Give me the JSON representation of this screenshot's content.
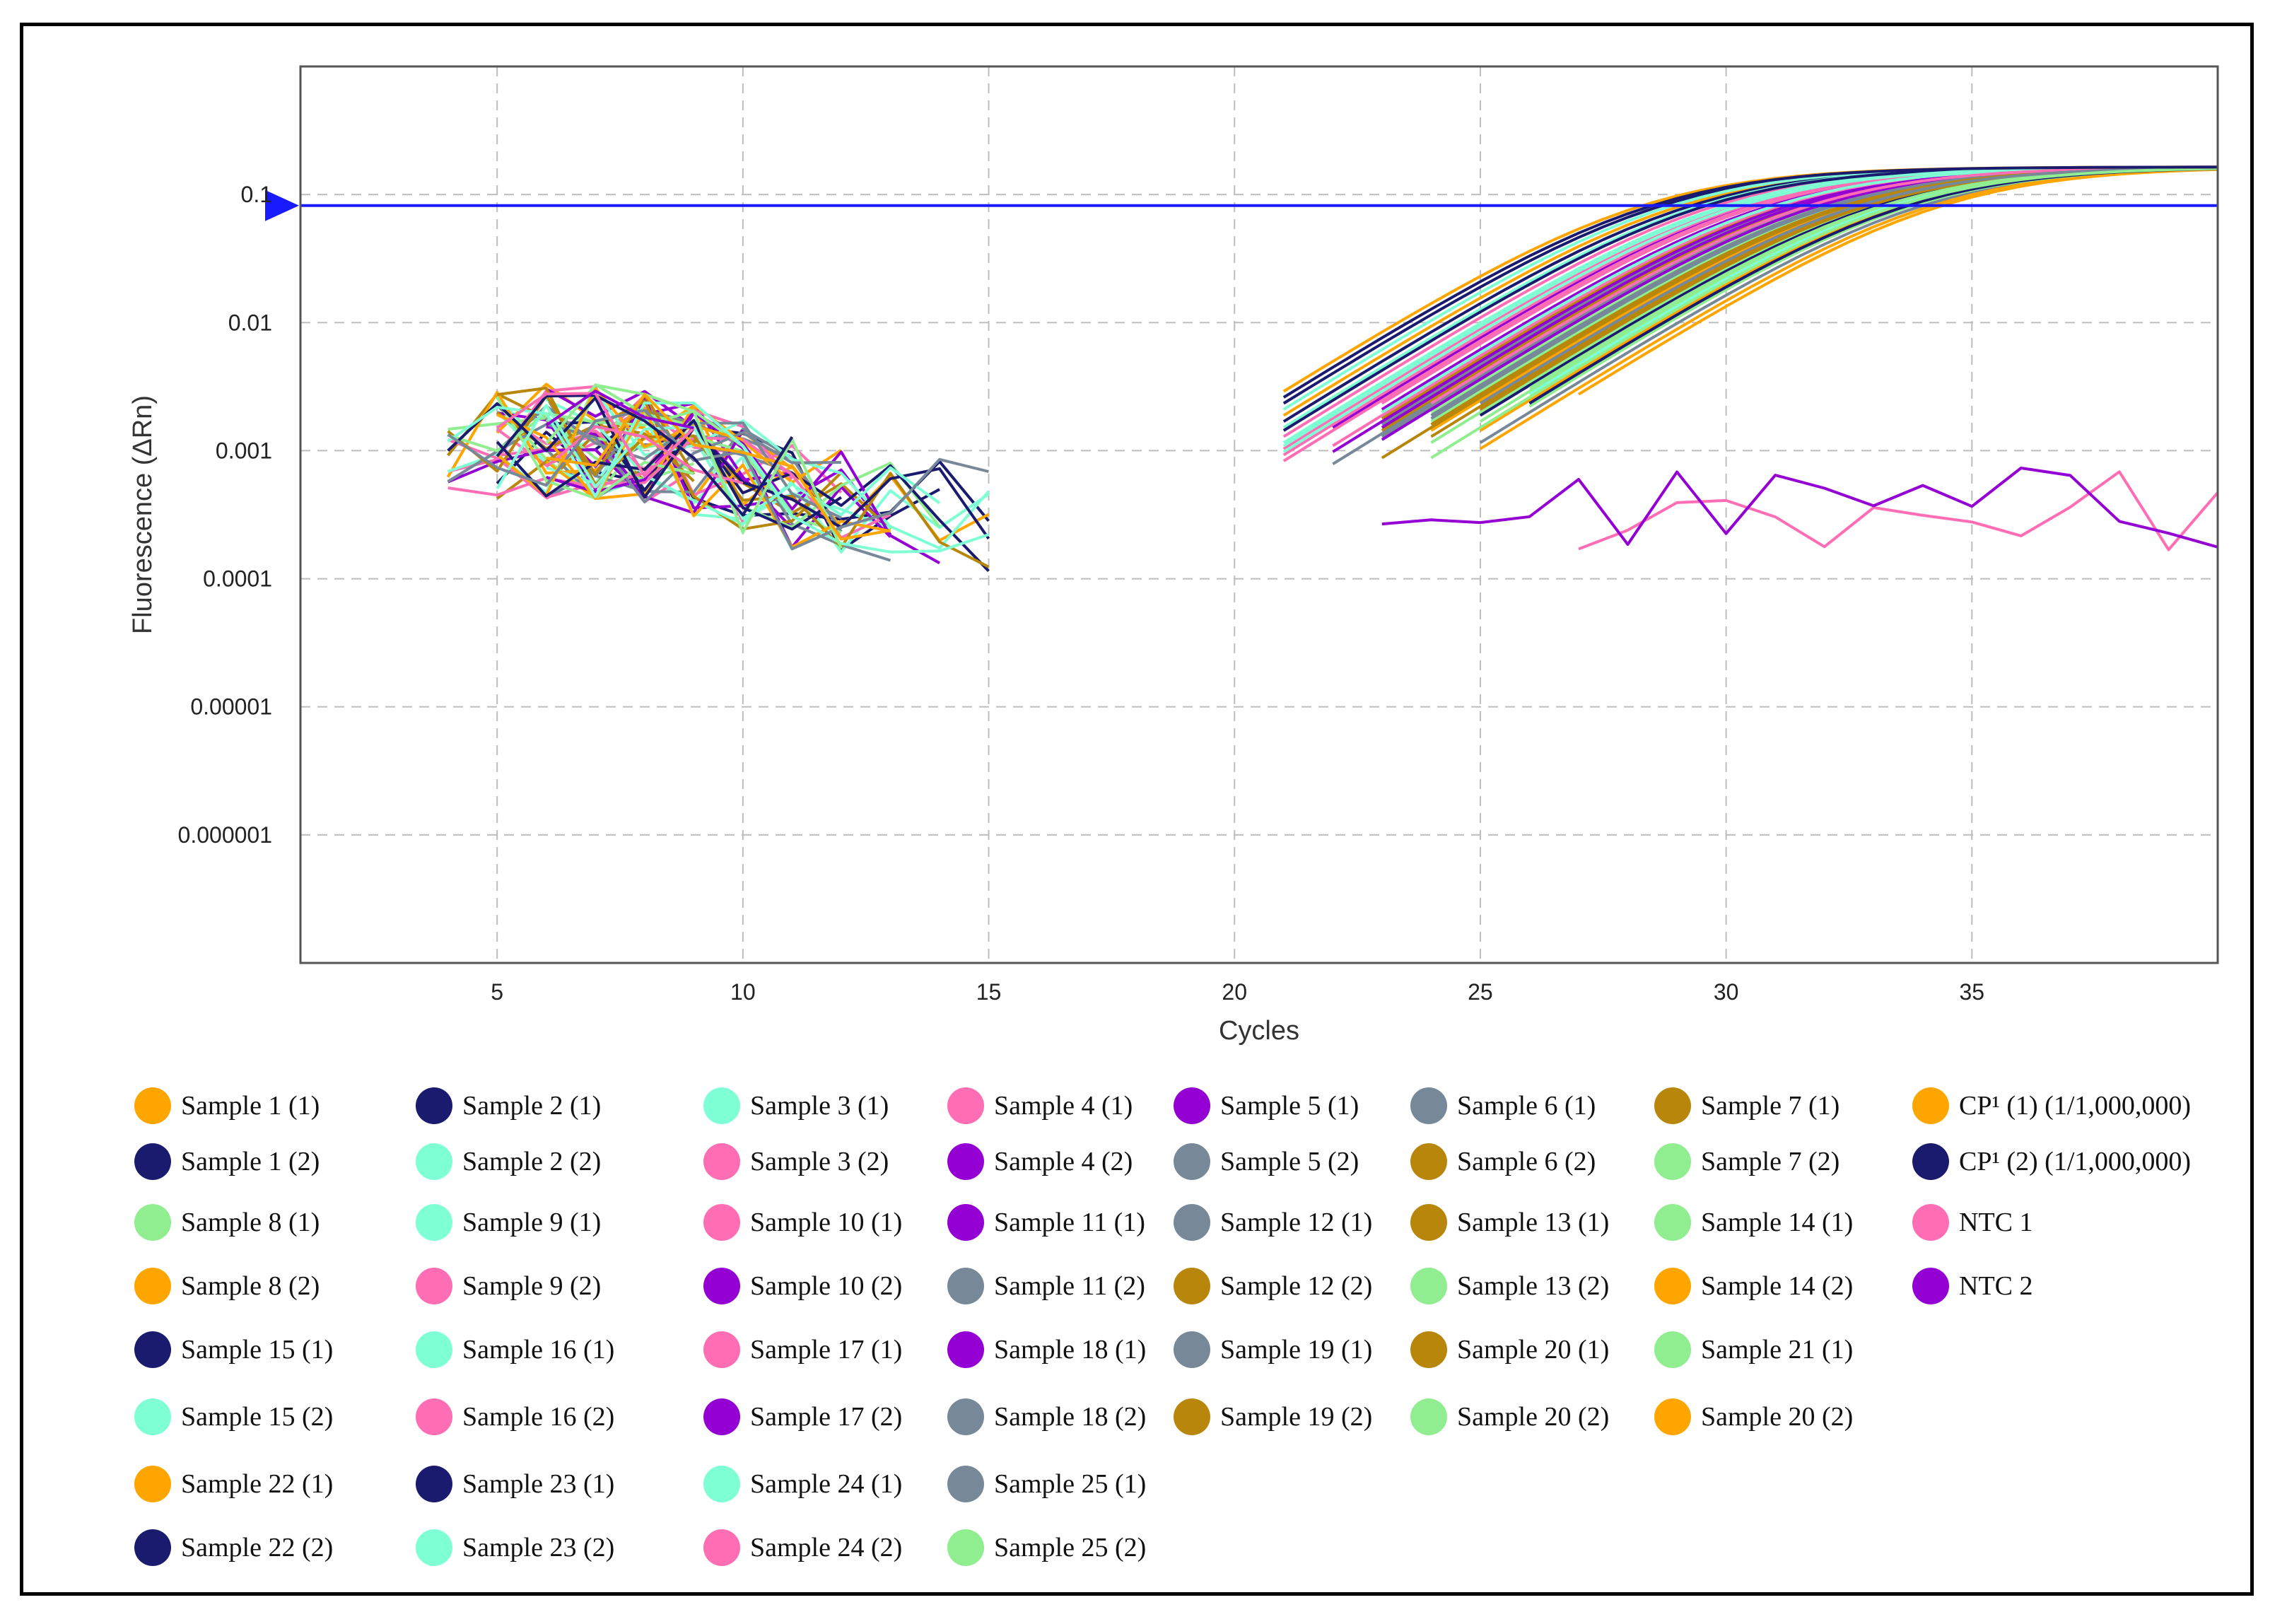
{
  "chart_data": {
    "type": "line",
    "title": "",
    "xlabel": "Cycles",
    "ylabel": "Fluorescence (ΔRn)",
    "y_scale": "log",
    "xlim": [
      1,
      40
    ],
    "ylim": [
      1e-07,
      1
    ],
    "x_ticks": [
      5,
      10,
      15,
      20,
      25,
      30,
      35
    ],
    "x_tick_labels": [
      "5",
      "10",
      "15",
      "20",
      "25",
      "30",
      "35"
    ],
    "y_ticks": [
      0.1,
      0.01,
      0.001,
      0.0001,
      1e-05,
      1e-06
    ],
    "y_tick_labels": [
      "0.1",
      "0.01",
      "0.001",
      "0.0001",
      "0.00001",
      "0.000001"
    ],
    "grid": true,
    "threshold": 0.082,
    "legend_position": "bottom",
    "colors": {
      "orange": "#FFA500",
      "navy": "#1a1a6e",
      "aquamarine": "#7FFFD4",
      "pink": "#FF6EB4",
      "purple": "#9400D3",
      "slate": "#778899",
      "darkgoldenrod": "#B8860B",
      "lightgreen": "#90EE90",
      "threshold": "#1a1aff",
      "grid": "#bdbdbd"
    },
    "series": [
      {
        "name": "Sample 1 (1)",
        "color": "#FFA500",
        "ct": 29.1
      },
      {
        "name": "Sample 1 (2)",
        "color": "#1a1a6e",
        "ct": 29.3
      },
      {
        "name": "Sample 2 (1)",
        "color": "#1a1a6e",
        "ct": 28.7
      },
      {
        "name": "Sample 2 (2)",
        "color": "#7FFFD4",
        "ct": 28.9
      },
      {
        "name": "Sample 3 (1)",
        "color": "#7FFFD4",
        "ct": 29.5
      },
      {
        "name": "Sample 3 (2)",
        "color": "#FF6EB4",
        "ct": 29.8
      },
      {
        "name": "Sample 4 (1)",
        "color": "#FF6EB4",
        "ct": 30.2
      },
      {
        "name": "Sample 4 (2)",
        "color": "#9400D3",
        "ct": 30.5
      },
      {
        "name": "Sample 5 (1)",
        "color": "#9400D3",
        "ct": 30.9
      },
      {
        "name": "Sample 5 (2)",
        "color": "#778899",
        "ct": 31.4
      },
      {
        "name": "Sample 6 (1)",
        "color": "#778899",
        "ct": 31.8
      },
      {
        "name": "Sample 6 (2)",
        "color": "#B8860B",
        "ct": 31.2
      },
      {
        "name": "Sample 7 (1)",
        "color": "#B8860B",
        "ct": 31.6
      },
      {
        "name": "Sample 7 (2)",
        "color": "#90EE90",
        "ct": 32.0
      },
      {
        "name": "Sample 8 (1)",
        "color": "#90EE90",
        "ct": 32.3
      },
      {
        "name": "Sample 8 (2)",
        "color": "#FFA500",
        "ct": 32.6
      },
      {
        "name": "Sample 9 (1)",
        "color": "#7FFFD4",
        "ct": 30.0
      },
      {
        "name": "Sample 9 (2)",
        "color": "#FF6EB4",
        "ct": 30.4
      },
      {
        "name": "Sample 10 (1)",
        "color": "#FF6EB4",
        "ct": 30.7
      },
      {
        "name": "Sample 10 (2)",
        "color": "#9400D3",
        "ct": 31.0
      },
      {
        "name": "Sample 11 (1)",
        "color": "#9400D3",
        "ct": 31.3
      },
      {
        "name": "Sample 11 (2)",
        "color": "#778899",
        "ct": 31.7
      },
      {
        "name": "Sample 12 (1)",
        "color": "#778899",
        "ct": 32.1
      },
      {
        "name": "Sample 12 (2)",
        "color": "#B8860B",
        "ct": 32.4
      },
      {
        "name": "Sample 13 (1)",
        "color": "#B8860B",
        "ct": 32.8
      },
      {
        "name": "Sample 13 (2)",
        "color": "#90EE90",
        "ct": 33.0
      },
      {
        "name": "Sample 14 (1)",
        "color": "#90EE90",
        "ct": 33.3
      },
      {
        "name": "Sample 14 (2)",
        "color": "#FFA500",
        "ct": 33.6
      },
      {
        "name": "Sample 15 (1)",
        "color": "#1a1a6e",
        "ct": 33.1
      },
      {
        "name": "Sample 15 (2)",
        "color": "#7FFFD4",
        "ct": 33.4
      },
      {
        "name": "Sample 16 (1)",
        "color": "#7FFFD4",
        "ct": 30.1
      },
      {
        "name": "Sample 16 (2)",
        "color": "#FF6EB4",
        "ct": 30.6
      },
      {
        "name": "Sample 17 (1)",
        "color": "#FF6EB4",
        "ct": 31.1
      },
      {
        "name": "Sample 17 (2)",
        "color": "#9400D3",
        "ct": 31.5
      },
      {
        "name": "Sample 18 (1)",
        "color": "#9400D3",
        "ct": 31.9
      },
      {
        "name": "Sample 18 (2)",
        "color": "#778899",
        "ct": 32.2
      },
      {
        "name": "Sample 19 (1)",
        "color": "#778899",
        "ct": 34.0
      },
      {
        "name": "Sample 19 (2)",
        "color": "#B8860B",
        "ct": 32.5
      },
      {
        "name": "Sample 20 (1)",
        "color": "#B8860B",
        "ct": 32.9
      },
      {
        "name": "Sample 20 (2)",
        "color": "#90EE90",
        "ct": 33.2
      },
      {
        "name": "Sample 20 (2)",
        "color": "#FFA500",
        "ct": 34.2
      },
      {
        "name": "Sample 21 (1)",
        "color": "#90EE90",
        "ct": 33.8
      },
      {
        "name": "Sample 22 (1)",
        "color": "#FFA500",
        "ct": 34.4
      },
      {
        "name": "Sample 22 (2)",
        "color": "#1a1a6e",
        "ct": 33.7
      },
      {
        "name": "Sample 23 (1)",
        "color": "#1a1a6e",
        "ct": 29.6
      },
      {
        "name": "Sample 23 (2)",
        "color": "#7FFFD4",
        "ct": 30.3
      },
      {
        "name": "Sample 24 (1)",
        "color": "#7FFFD4",
        "ct": 31.0
      },
      {
        "name": "Sample 24 (2)",
        "color": "#FF6EB4",
        "ct": 31.7
      },
      {
        "name": "Sample 25 (1)",
        "color": "#778899",
        "ct": 32.7
      },
      {
        "name": "Sample 25 (2)",
        "color": "#90EE90",
        "ct": 33.5
      },
      {
        "name": "CP¹ (1) (1/1,000,000)",
        "color": "#FFA500",
        "ct": 28.3
      },
      {
        "name": "CP¹ (2) (1/1,000,000)",
        "color": "#1a1a6e",
        "ct": 28.5
      },
      {
        "name": "NTC 1",
        "color": "#FF6EB4",
        "ct": null
      },
      {
        "name": "NTC 2",
        "color": "#9400D3",
        "ct": null
      }
    ]
  },
  "legend": {
    "columns": [
      [
        {
          "label": "Sample 1 (1)",
          "color": "#FFA500"
        },
        {
          "label": "Sample 1 (2)",
          "color": "#1a1a6e"
        },
        {
          "label": "Sample 8 (1)",
          "color": "#90EE90"
        },
        {
          "label": "Sample 8 (2)",
          "color": "#FFA500"
        },
        {
          "label": "Sample 15 (1)",
          "color": "#1a1a6e"
        },
        {
          "label": "Sample 15 (2)",
          "color": "#7FFFD4"
        },
        {
          "label": "Sample 22 (1)",
          "color": "#FFA500"
        },
        {
          "label": "Sample 22 (2)",
          "color": "#1a1a6e"
        }
      ],
      [
        {
          "label": "Sample 2 (1)",
          "color": "#1a1a6e"
        },
        {
          "label": "Sample 2 (2)",
          "color": "#7FFFD4"
        },
        {
          "label": "Sample 9 (1)",
          "color": "#7FFFD4"
        },
        {
          "label": "Sample 9 (2)",
          "color": "#FF6EB4"
        },
        {
          "label": "Sample 16 (1)",
          "color": "#7FFFD4"
        },
        {
          "label": "Sample 16 (2)",
          "color": "#FF6EB4"
        },
        {
          "label": "Sample 23 (1)",
          "color": "#1a1a6e"
        },
        {
          "label": "Sample 23 (2)",
          "color": "#7FFFD4"
        }
      ],
      [
        {
          "label": "Sample 3 (1)",
          "color": "#7FFFD4"
        },
        {
          "label": "Sample 3 (2)",
          "color": "#FF6EB4"
        },
        {
          "label": "Sample 10 (1)",
          "color": "#FF6EB4"
        },
        {
          "label": "Sample 10 (2)",
          "color": "#9400D3"
        },
        {
          "label": "Sample 17 (1)",
          "color": "#FF6EB4"
        },
        {
          "label": "Sample 17 (2)",
          "color": "#9400D3"
        },
        {
          "label": "Sample 24 (1)",
          "color": "#7FFFD4"
        },
        {
          "label": "Sample 24 (2)",
          "color": "#FF6EB4"
        }
      ],
      [
        {
          "label": "Sample 4 (1)",
          "color": "#FF6EB4"
        },
        {
          "label": "Sample 4 (2)",
          "color": "#9400D3"
        },
        {
          "label": "Sample 11 (1)",
          "color": "#9400D3"
        },
        {
          "label": "Sample 11 (2)",
          "color": "#778899"
        },
        {
          "label": "Sample 18 (1)",
          "color": "#9400D3"
        },
        {
          "label": "Sample 18 (2)",
          "color": "#778899"
        },
        {
          "label": "Sample 25 (1)",
          "color": "#778899"
        },
        {
          "label": "Sample 25 (2)",
          "color": "#90EE90"
        }
      ],
      [
        {
          "label": "Sample 5 (1)",
          "color": "#9400D3"
        },
        {
          "label": "Sample 5 (2)",
          "color": "#778899"
        },
        {
          "label": "Sample 12 (1)",
          "color": "#778899"
        },
        {
          "label": "Sample 12 (2)",
          "color": "#B8860B"
        },
        {
          "label": "Sample 19 (1)",
          "color": "#778899"
        },
        {
          "label": "Sample 19 (2)",
          "color": "#B8860B"
        }
      ],
      [
        {
          "label": "Sample 6 (1)",
          "color": "#778899"
        },
        {
          "label": "Sample 6 (2)",
          "color": "#B8860B"
        },
        {
          "label": "Sample 13 (1)",
          "color": "#B8860B"
        },
        {
          "label": "Sample 13 (2)",
          "color": "#90EE90"
        },
        {
          "label": "Sample 20 (1)",
          "color": "#B8860B"
        },
        {
          "label": "Sample 20 (2)",
          "color": "#90EE90"
        }
      ],
      [
        {
          "label": "Sample 7 (1)",
          "color": "#B8860B"
        },
        {
          "label": "Sample 7 (2)",
          "color": "#90EE90"
        },
        {
          "label": "Sample 14 (1)",
          "color": "#90EE90"
        },
        {
          "label": "Sample 14 (2)",
          "color": "#FFA500"
        },
        {
          "label": "Sample 21 (1)",
          "color": "#90EE90"
        },
        {
          "label": "Sample 20 (2)",
          "color": "#FFA500"
        }
      ],
      [
        {
          "label": "CP¹ (1) (1/1,000,000)",
          "color": "#FFA500"
        },
        {
          "label": "CP¹ (2) (1/1,000,000)",
          "color": "#1a1a6e"
        },
        {
          "label": "NTC 1",
          "color": "#FF6EB4"
        },
        {
          "label": "NTC 2",
          "color": "#9400D3"
        }
      ]
    ]
  }
}
